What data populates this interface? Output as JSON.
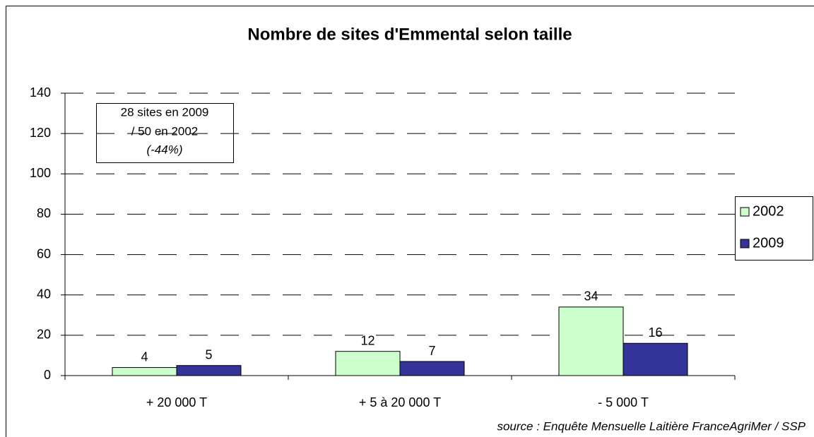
{
  "chart_data": {
    "type": "bar",
    "title": "Nombre de sites d'Emmental selon taille",
    "categories": [
      "+ 20 000 T",
      "+ 5 à 20 000 T",
      "- 5 000 T"
    ],
    "series": [
      {
        "name": "2002",
        "color": "#ccffcc",
        "values": [
          4,
          12,
          34
        ]
      },
      {
        "name": "2009",
        "color": "#333399",
        "values": [
          5,
          7,
          16
        ]
      }
    ],
    "ylim": [
      0,
      140
    ],
    "yticks": [
      0,
      20,
      40,
      60,
      80,
      100,
      120,
      140
    ],
    "grid": true,
    "legend": "right",
    "annotation": [
      "28 sites en 2009",
      "/ 50 en 2002",
      "(-44%)"
    ],
    "source": "source : Enquête Mensuelle Laitière FranceAgriMer /  SSP"
  }
}
